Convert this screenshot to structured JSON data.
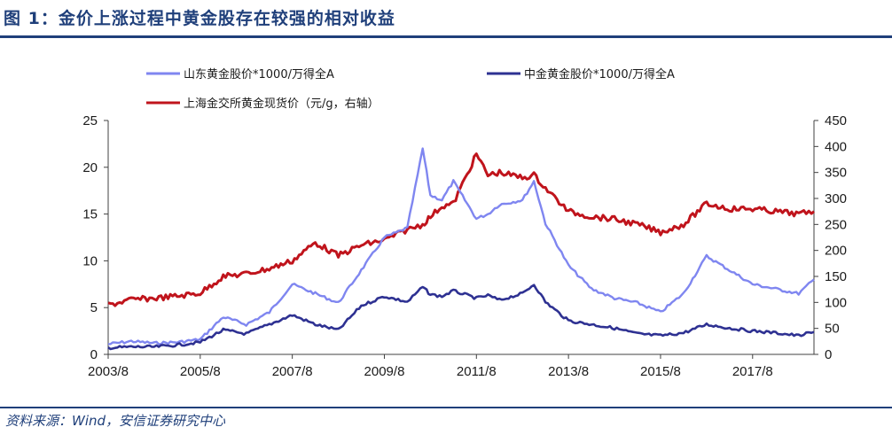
{
  "figure": {
    "title": "图 1：金价上涨过程中黄金股存在较强的相对收益",
    "source": "资料来源：Wind，安信证券研究中心"
  },
  "colors": {
    "shandong": "#7f86f0",
    "zhongjin": "#2e3192",
    "gold": "#c0141c",
    "rule": "#1f3f7a"
  },
  "chart_data": {
    "type": "line",
    "x_ticks": [
      "2003/8",
      "2005/8",
      "2007/8",
      "2009/8",
      "2011/8",
      "2013/8",
      "2015/8",
      "2017/8"
    ],
    "x_range": [
      "2003/8",
      "2018/12"
    ],
    "y_left": {
      "range": [
        0,
        25
      ],
      "ticks": [
        "0",
        "5",
        "10",
        "15",
        "20",
        "25"
      ]
    },
    "y_right": {
      "range": [
        0,
        450
      ],
      "ticks": [
        "0",
        "50",
        "100",
        "150",
        "200",
        "250",
        "300",
        "350",
        "400",
        "450"
      ]
    },
    "grid": false,
    "legend_position": "top",
    "series": [
      {
        "name": "山东黄金股价*1000/万得全A",
        "axis": "left",
        "x": [
          "2003/8",
          "2004/2",
          "2004/8",
          "2005/2",
          "2005/8",
          "2006/2",
          "2006/8",
          "2007/2",
          "2007/8",
          "2008/2",
          "2008/8",
          "2009/2",
          "2009/8",
          "2010/2",
          "2010/6",
          "2010/8",
          "2010/11",
          "2011/2",
          "2011/8",
          "2011/11",
          "2012/2",
          "2012/8",
          "2012/11",
          "2013/2",
          "2013/8",
          "2014/2",
          "2014/8",
          "2015/2",
          "2015/8",
          "2016/2",
          "2016/8",
          "2017/2",
          "2017/8",
          "2018/2",
          "2018/8",
          "2018/12"
        ],
        "values": [
          1.1,
          1.4,
          1.2,
          1.3,
          1.6,
          4.0,
          3.2,
          4.5,
          7.5,
          6.5,
          5.5,
          9.0,
          12.5,
          13.5,
          22.0,
          17.0,
          16.5,
          18.5,
          14.5,
          15.0,
          16.0,
          16.5,
          18.5,
          14.0,
          9.5,
          7.0,
          6.0,
          5.5,
          4.5,
          6.5,
          10.5,
          9.0,
          7.5,
          7.0,
          6.5,
          8.0
        ]
      },
      {
        "name": "中金黄金股价*1000/万得全A",
        "axis": "left",
        "x": [
          "2003/8",
          "2004/2",
          "2004/8",
          "2005/2",
          "2005/8",
          "2006/2",
          "2006/8",
          "2007/2",
          "2007/8",
          "2008/2",
          "2008/8",
          "2009/2",
          "2009/8",
          "2010/2",
          "2010/6",
          "2010/8",
          "2010/11",
          "2011/2",
          "2011/8",
          "2011/11",
          "2012/2",
          "2012/8",
          "2012/11",
          "2013/2",
          "2013/8",
          "2014/2",
          "2014/8",
          "2015/2",
          "2015/8",
          "2016/2",
          "2016/8",
          "2017/2",
          "2017/8",
          "2018/2",
          "2018/8",
          "2018/12"
        ],
        "values": [
          0.7,
          0.8,
          0.8,
          1.0,
          1.3,
          2.6,
          2.2,
          3.2,
          4.2,
          3.2,
          2.6,
          5.2,
          6.2,
          5.6,
          7.2,
          6.4,
          6.2,
          6.8,
          6.0,
          6.3,
          5.8,
          6.5,
          7.5,
          5.6,
          3.6,
          3.2,
          2.8,
          2.2,
          2.0,
          2.3,
          3.2,
          2.8,
          2.5,
          2.3,
          2.0,
          2.4
        ]
      },
      {
        "name": "上海金交所黄金现货价（元/g，右轴）",
        "axis": "right",
        "x": [
          "2003/8",
          "2004/2",
          "2004/8",
          "2005/2",
          "2005/8",
          "2006/2",
          "2006/8",
          "2007/2",
          "2007/8",
          "2008/2",
          "2008/8",
          "2009/2",
          "2009/8",
          "2010/2",
          "2010/6",
          "2010/8",
          "2010/11",
          "2011/2",
          "2011/8",
          "2011/11",
          "2012/2",
          "2012/8",
          "2012/11",
          "2013/2",
          "2013/8",
          "2014/2",
          "2014/8",
          "2015/2",
          "2015/8",
          "2016/2",
          "2016/8",
          "2017/2",
          "2017/8",
          "2018/2",
          "2018/8",
          "2018/12"
        ],
        "values": [
          95,
          105,
          108,
          112,
          118,
          150,
          155,
          165,
          180,
          215,
          190,
          210,
          220,
          240,
          250,
          265,
          285,
          290,
          385,
          345,
          350,
          340,
          345,
          320,
          275,
          265,
          260,
          250,
          235,
          250,
          290,
          280,
          280,
          275,
          270,
          275
        ]
      }
    ]
  }
}
